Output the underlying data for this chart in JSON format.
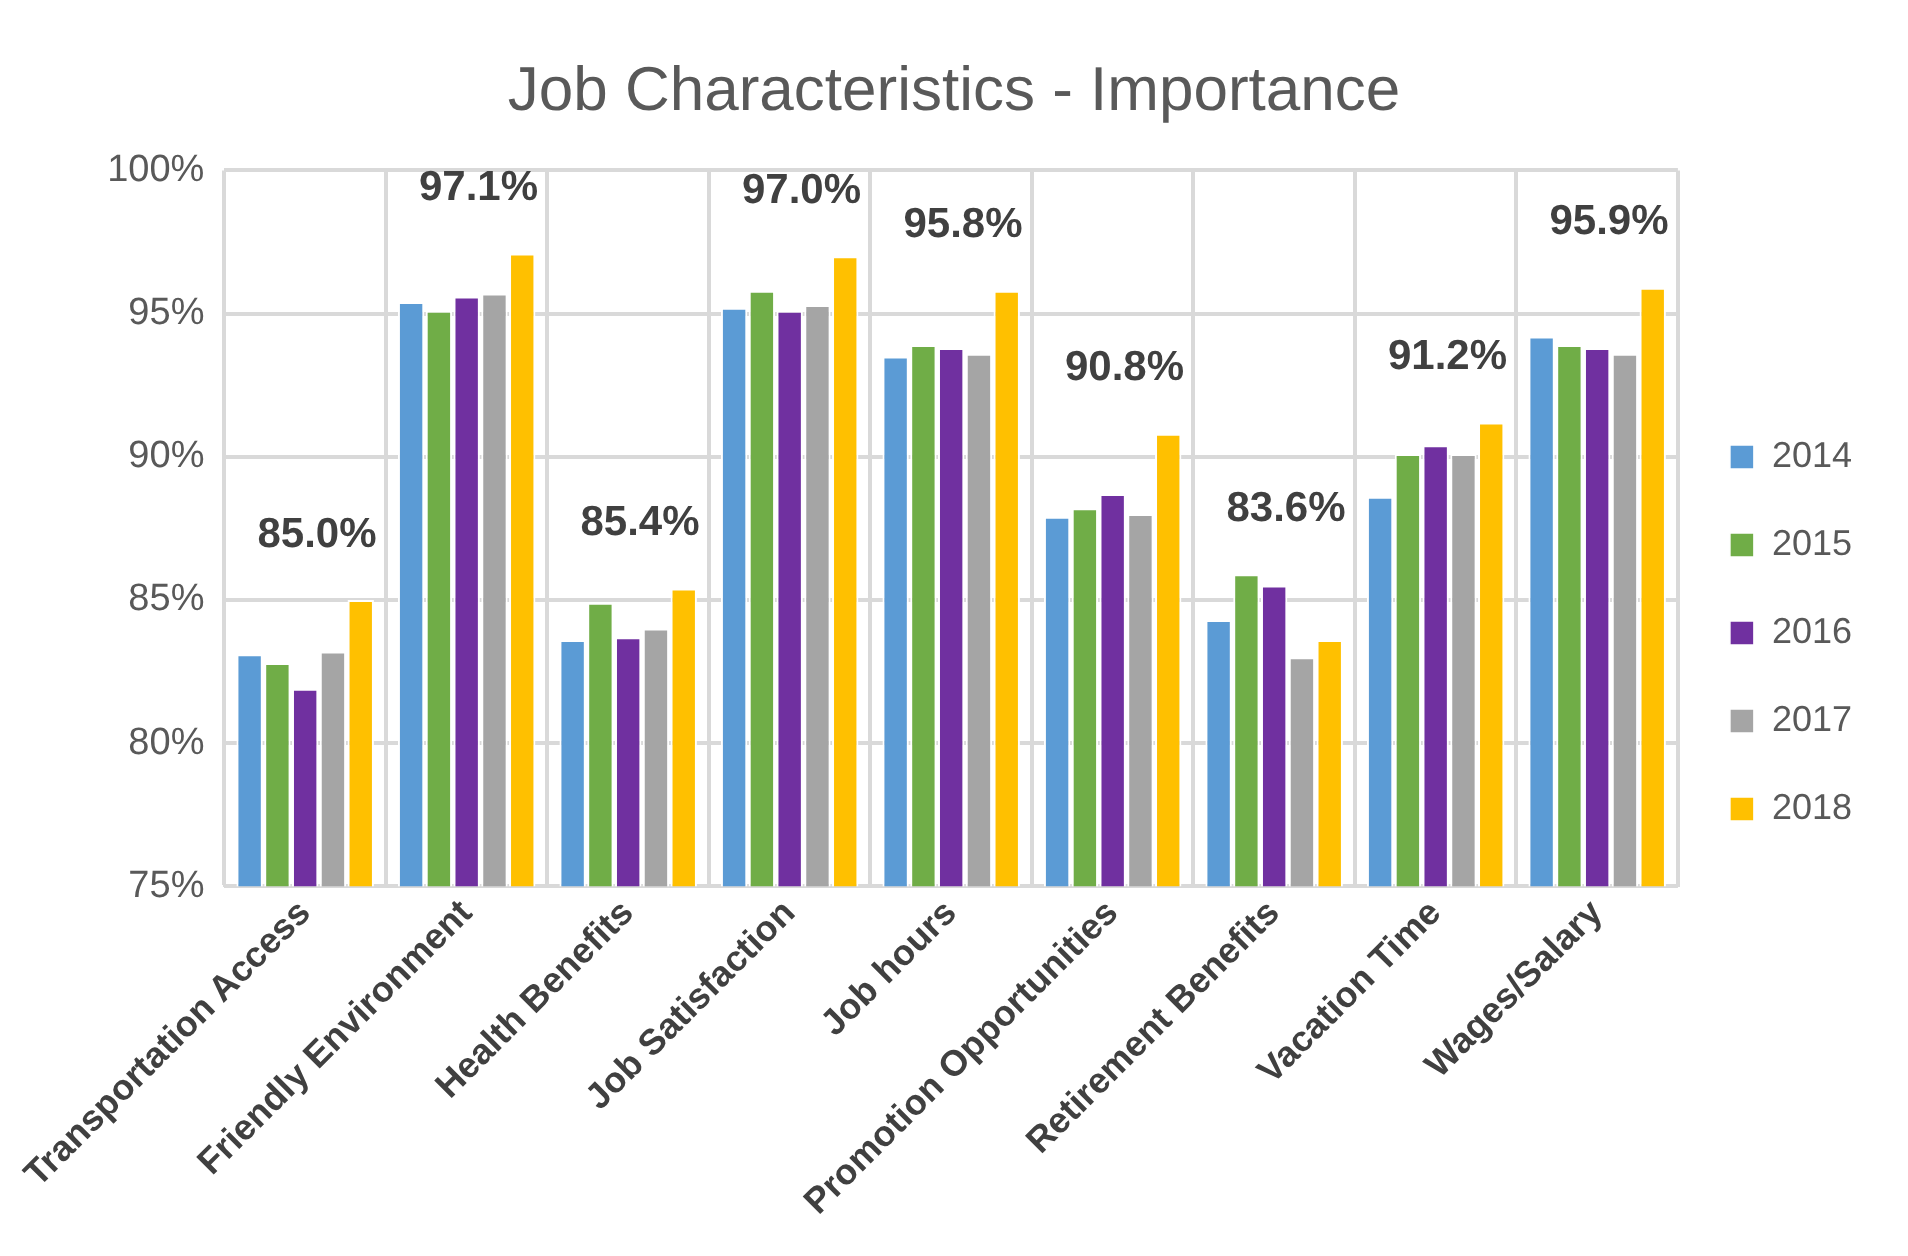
{
  "chart_data": {
    "type": "bar",
    "title": "Job Characteristics - Importance",
    "categories": [
      "Transportation Access",
      "Friendly Environment",
      "Health Benefits",
      "Job Satisfaction",
      "Job hours",
      "Promotion Opportunities",
      "Retirement Benefits",
      "Vacation Time",
      "Wages/Salary"
    ],
    "series": [
      {
        "name": "2014",
        "color": "#5b9bd5",
        "values": [
          83.1,
          95.4,
          83.6,
          95.2,
          93.5,
          87.9,
          84.3,
          88.6,
          94.2
        ]
      },
      {
        "name": "2015",
        "color": "#70ad47",
        "values": [
          82.8,
          95.1,
          84.9,
          95.8,
          93.9,
          88.2,
          85.9,
          90.1,
          93.9
        ]
      },
      {
        "name": "2016",
        "color": "#7030a0",
        "values": [
          81.9,
          95.6,
          83.7,
          95.1,
          93.8,
          88.7,
          85.5,
          90.4,
          93.8
        ]
      },
      {
        "name": "2017",
        "color": "#a5a5a5",
        "values": [
          83.2,
          95.7,
          84.0,
          95.3,
          93.6,
          88.0,
          83.0,
          90.1,
          93.6
        ]
      },
      {
        "name": "2018",
        "color": "#ffc000",
        "values": [
          85.0,
          97.1,
          85.4,
          97.0,
          95.8,
          90.8,
          83.6,
          91.2,
          95.9
        ],
        "value_labels": [
          "85.0%",
          "97.1%",
          "85.4%",
          "97.0%",
          "95.8%",
          "90.8%",
          "83.6%",
          "91.2%",
          "95.9%"
        ]
      }
    ],
    "ylim": [
      75,
      100
    ],
    "yticks": [
      {
        "value": 75,
        "label": "75%"
      },
      {
        "value": 80,
        "label": "80%"
      },
      {
        "value": 85,
        "label": "85%"
      },
      {
        "value": 90,
        "label": "90%"
      },
      {
        "value": 95,
        "label": "95%"
      },
      {
        "value": 100,
        "label": "100%"
      }
    ],
    "grid": true,
    "legend": "right"
  }
}
